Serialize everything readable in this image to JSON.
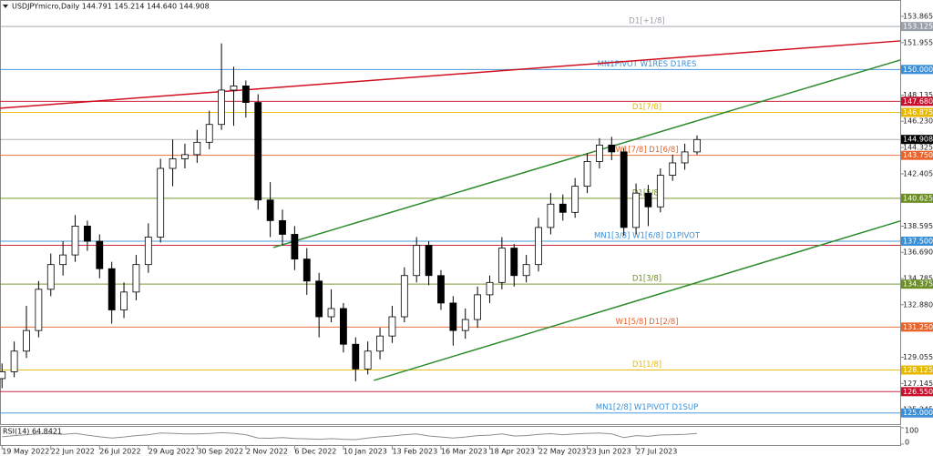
{
  "chart_data": {
    "type": "candlestick",
    "title": "USDJPYmicro,Daily  144.791 145.214 144.640 144.908",
    "xlim": [
      -1,
      442
    ],
    "ylim": [
      124.185,
      155.057
    ],
    "xticks": [
      {
        "value": 0,
        "label": "19 May 2022"
      },
      {
        "value": 24,
        "label": "22 Jun 2022"
      },
      {
        "value": 48,
        "label": "26 Jul 2022"
      },
      {
        "value": 72,
        "label": "29 Aug 2022"
      },
      {
        "value": 96,
        "label": "30 Sep 2022"
      },
      {
        "value": 120,
        "label": "2 Nov 2022"
      },
      {
        "value": 144,
        "label": "6 Dec 2022"
      },
      {
        "value": 168,
        "label": "10 Jan 2023"
      },
      {
        "value": 192,
        "label": "13 Feb 2023"
      },
      {
        "value": 216,
        "label": "16 Mar 2023"
      },
      {
        "value": 240,
        "label": "18 Apr 2023"
      },
      {
        "value": 264,
        "label": "22 May 2023"
      },
      {
        "value": 288,
        "label": "23 Jun 2023"
      },
      {
        "value": 312,
        "label": "27 Jul 2023"
      }
    ],
    "yticks": [
      153.865,
      151.955,
      148.135,
      {
        "value": 146.23,
        "label": "146.230"
      },
      144.325,
      142.405,
      138.595,
      {
        "value": 136.69,
        "label": "136.690"
      },
      134.785,
      {
        "value": 132.88,
        "label": "132.880"
      },
      129.055,
      127.145,
      125.245
    ],
    "levels": [
      {
        "value": 153.125,
        "text": "D1[+1/8]",
        "tag": "153.125",
        "color": "#9aa0a8"
      },
      {
        "value": 150,
        "text": "MN1PIVOT W1RES D1RES",
        "tag": "150.000",
        "color": "#3a8fd6"
      },
      {
        "value": 147.68,
        "tag": "147.680",
        "color": "#c8102e"
      },
      {
        "value": 146.875,
        "text": "D1[7/8]",
        "tag": "146.875",
        "color": "#e6b800"
      },
      {
        "value": 144.908,
        "tag": "144.908",
        "color": "#000000"
      },
      {
        "value": 143.75,
        "text": "W1[7/8] D1[6/8]",
        "tag": "143.750",
        "color": "#e8642c"
      },
      {
        "value": 140.625,
        "text": "D1[5/8]",
        "tag": "140.625",
        "color": "#6b8e23"
      },
      {
        "value": 137.5,
        "text": "MN1[3/8] W1[6/8] D1PIVOT",
        "tag": "137.500",
        "color": "#3a8fd6"
      },
      {
        "value": 137.2,
        "color": "#c8102e"
      },
      {
        "value": 134.375,
        "text": "D1[3/8]",
        "tag": "134.375",
        "color": "#6b8e23"
      },
      {
        "value": 131.25,
        "text": "W1[5/8] D1[2/8]",
        "tag": "131.250",
        "color": "#e8642c"
      },
      {
        "value": 128.125,
        "text": "D1[1/8]",
        "tag": "128.125",
        "color": "#e6b800"
      },
      {
        "value": 126.55,
        "tag": "126.550",
        "color": "#c8102e"
      },
      {
        "value": 125,
        "text": "MN1[2/8] W1PIVOT D1SUP",
        "tag": "125.000",
        "color": "#3a8fd6"
      }
    ],
    "trendlines": [
      {
        "color": "#d0101e",
        "x": [
          -1,
          442
        ],
        "values": [
          147.18,
          152.08
        ]
      },
      {
        "color": "#2e8b2e",
        "x": [
          133.5,
          442
        ],
        "values": [
          137.04,
          150.69
        ]
      },
      {
        "color": "#2e8b2e",
        "x": [
          183,
          442
        ],
        "values": [
          127.37,
          138.97
        ]
      }
    ],
    "x": [
      0,
      6,
      12,
      18,
      24,
      30,
      36,
      42,
      48,
      54,
      60,
      66,
      72,
      78,
      84,
      90,
      96,
      102,
      108,
      114,
      120,
      126,
      132,
      138,
      144,
      150,
      156,
      162,
      168,
      174,
      180,
      186,
      192,
      198,
      204,
      210,
      216,
      222,
      228,
      234,
      240,
      246,
      252,
      258,
      264,
      270,
      276,
      282,
      288,
      294,
      300,
      306,
      312,
      318,
      324,
      330,
      336,
      342
    ],
    "open": [
      127.5,
      128.0,
      129.5,
      131.0,
      134.0,
      135.8,
      136.5,
      138.6,
      137.5,
      135.5,
      132.5,
      133.8,
      135.8,
      137.8,
      142.8,
      143.5,
      143.8,
      144.7,
      146.0,
      148.5,
      148.8,
      147.6,
      140.5,
      139.0,
      138.0,
      136.2,
      134.6,
      132.0,
      132.6,
      130.0,
      128.2,
      129.5,
      130.6,
      132.0,
      135.0,
      137.2,
      135.0,
      133.0,
      131.0,
      131.8,
      133.6,
      134.5,
      137.0,
      135.0,
      135.8,
      138.5,
      140.2,
      139.6,
      141.5,
      143.3,
      144.5,
      144.0,
      138.5,
      141.0,
      140.0,
      142.3,
      143.2,
      144.0
    ],
    "high": [
      128.6,
      130.2,
      132.8,
      134.6,
      136.6,
      137.5,
      139.4,
      139.0,
      138.0,
      136.0,
      134.5,
      136.5,
      138.8,
      143.5,
      144.9,
      144.6,
      145.6,
      147.0,
      151.9,
      150.2,
      149.2,
      148.2,
      141.8,
      139.8,
      138.6,
      137.0,
      135.2,
      134.0,
      133.0,
      130.5,
      130.2,
      131.2,
      132.8,
      135.6,
      137.8,
      137.5,
      135.4,
      133.5,
      132.6,
      134.2,
      135.0,
      137.8,
      137.3,
      136.5,
      139.2,
      141.0,
      140.9,
      142.1,
      143.9,
      145.0,
      145.1,
      144.3,
      141.7,
      141.6,
      142.8,
      143.8,
      144.6,
      145.2
    ],
    "low": [
      126.8,
      127.6,
      129.0,
      130.5,
      133.5,
      135.0,
      136.0,
      136.8,
      134.8,
      131.5,
      131.9,
      133.2,
      135.2,
      137.4,
      141.5,
      142.8,
      143.2,
      144.2,
      145.6,
      145.9,
      146.5,
      139.8,
      137.8,
      137.2,
      135.4,
      133.6,
      130.5,
      131.6,
      129.4,
      127.3,
      127.8,
      128.9,
      130.1,
      131.6,
      134.5,
      134.3,
      132.5,
      129.9,
      130.4,
      131.2,
      133.0,
      134.0,
      134.2,
      134.5,
      135.3,
      138.0,
      139.0,
      139.2,
      141.0,
      142.8,
      143.4,
      137.9,
      138.0,
      138.6,
      139.6,
      141.9,
      142.7,
      143.8
    ],
    "close": [
      128.0,
      129.5,
      131.0,
      134.0,
      135.8,
      136.5,
      138.6,
      137.5,
      135.5,
      132.5,
      133.8,
      135.8,
      137.8,
      142.8,
      143.5,
      143.8,
      144.7,
      146.0,
      148.5,
      148.8,
      147.6,
      140.5,
      139.0,
      138.0,
      136.2,
      134.6,
      132.0,
      132.6,
      130.0,
      128.2,
      129.5,
      130.6,
      132.0,
      135.0,
      137.2,
      135.0,
      133.0,
      131.0,
      131.8,
      133.6,
      134.5,
      137.0,
      135.0,
      135.8,
      138.5,
      140.2,
      139.6,
      141.5,
      143.3,
      144.5,
      144.0,
      138.5,
      141.0,
      140.0,
      142.3,
      143.2,
      144.0,
      144.9
    ],
    "rsi": {
      "title": "RSI(14) 64.8421",
      "ylim": [
        0,
        100
      ],
      "yticks": [
        100,
        0
      ],
      "color": "#8a8f96",
      "values": [
        45,
        52,
        58,
        62,
        64,
        60,
        66,
        55,
        45,
        38,
        44,
        52,
        58,
        68,
        66,
        62,
        63,
        65,
        70,
        66,
        58,
        38,
        36,
        40,
        35,
        33,
        30,
        34,
        30,
        28,
        38,
        45,
        50,
        58,
        62,
        50,
        44,
        38,
        44,
        52,
        55,
        62,
        50,
        52,
        60,
        64,
        58,
        62,
        66,
        68,
        62,
        40,
        52,
        48,
        56,
        58,
        60,
        65
      ]
    }
  }
}
